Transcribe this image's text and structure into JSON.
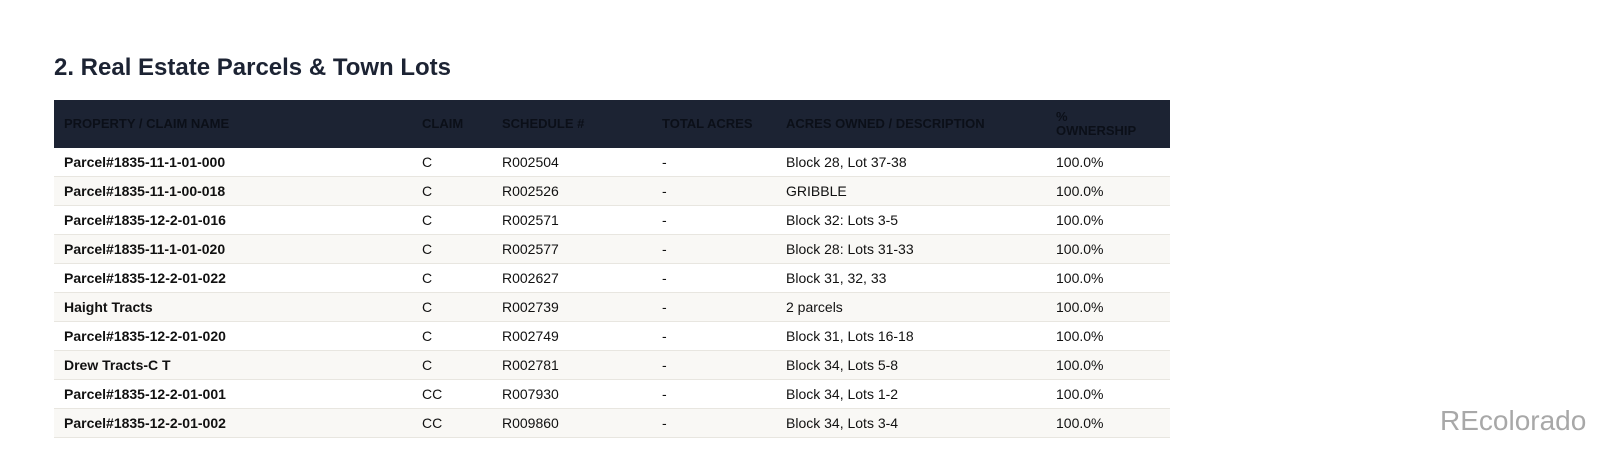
{
  "title": "2. Real Estate Parcels & Town Lots",
  "table": {
    "header": [
      "PROPERTY / CLAIM NAME",
      "CLAIM",
      "SCHEDULE #",
      "TOTAL ACRES",
      "ACRES OWNED / DESCRIPTION",
      "% OWNERSHIP"
    ],
    "rows": [
      [
        "Parcel#1835-11-1-01-000",
        "C",
        "R002504",
        "-",
        "Block 28, Lot 37-38",
        "100.0%"
      ],
      [
        "Parcel#1835-11-1-00-018",
        "C",
        "R002526",
        "-",
        "GRIBBLE",
        "100.0%"
      ],
      [
        "Parcel#1835-12-2-01-016",
        "C",
        "R002571",
        "-",
        "Block 32: Lots 3-5",
        "100.0%"
      ],
      [
        "Parcel#1835-11-1-01-020",
        "C",
        "R002577",
        "-",
        "Block 28: Lots 31-33",
        "100.0%"
      ],
      [
        "Parcel#1835-12-2-01-022",
        "C",
        "R002627",
        "-",
        "Block 31, 32, 33",
        "100.0%"
      ],
      [
        "Haight Tracts",
        "C",
        "R002739",
        "-",
        "2 parcels",
        "100.0%"
      ],
      [
        "Parcel#1835-12-2-01-020",
        "C",
        "R002749",
        "-",
        "Block 31, Lots 16-18",
        "100.0%"
      ],
      [
        "Drew Tracts-C T",
        "C",
        "R002781",
        "-",
        "Block 34, Lots 5-8",
        "100.0%"
      ],
      [
        "Parcel#1835-12-2-01-001",
        "CC",
        "R007930",
        "-",
        "Block 34, Lots 1-2",
        "100.0%"
      ],
      [
        "Parcel#1835-12-2-01-002",
        "CC",
        "R009860",
        "-",
        "Block 34, Lots 3-4",
        "100.0%"
      ]
    ]
  },
  "watermark": "REcolorado"
}
